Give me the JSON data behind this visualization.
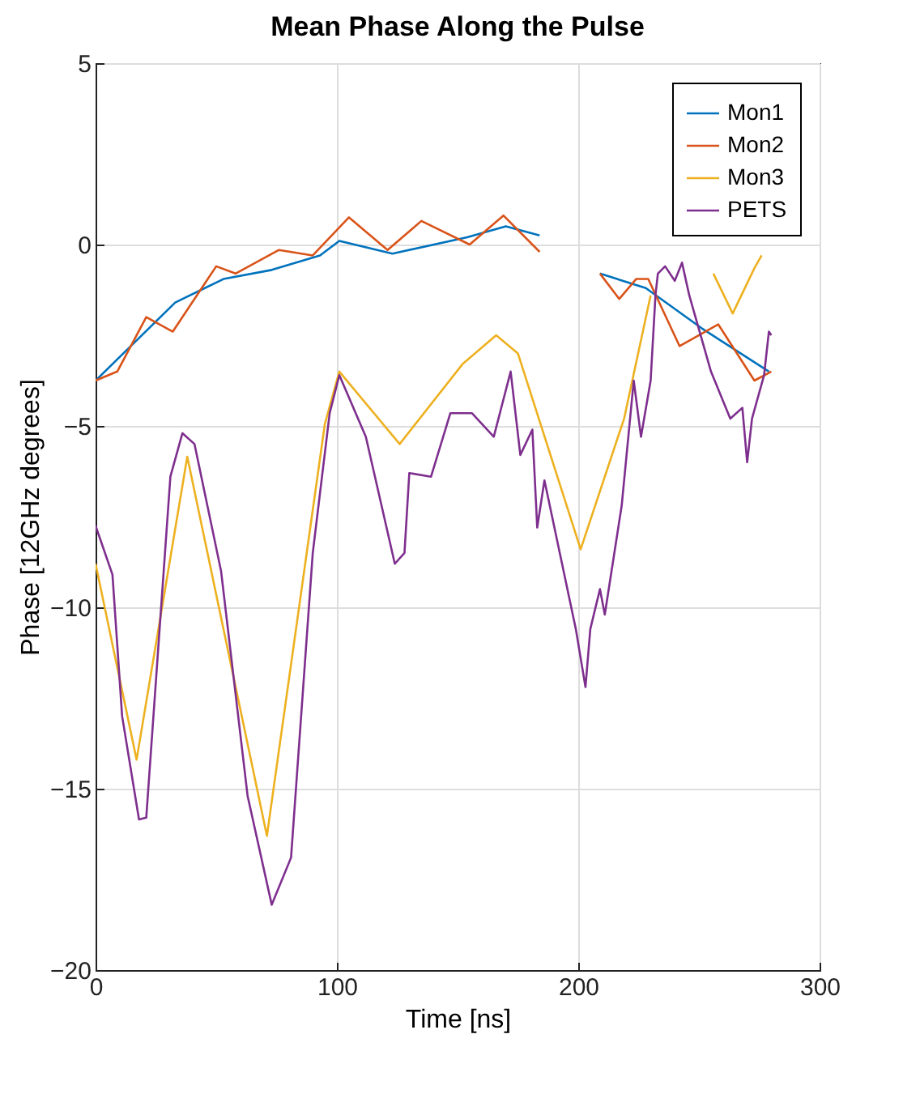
{
  "chart_data": {
    "type": "line",
    "title": "Mean Phase Along the Pulse",
    "xlabel": "Time [ns]",
    "ylabel": "Phase [12GHz degrees]",
    "xlim": [
      0,
      300
    ],
    "xticks": [
      0,
      100,
      200,
      300
    ],
    "ylim": [
      -20,
      5
    ],
    "yticks": [
      -20,
      -15,
      -10,
      -5,
      0,
      5
    ],
    "grid": true,
    "legend": "top right",
    "line_style": "solid",
    "marker": "none",
    "series": [
      {
        "name": "Mon1",
        "color": "#0072bd",
        "x": [
          0,
          33,
          53,
          73,
          93,
          101,
          123,
          154,
          170,
          184,
          197,
          209,
          228,
          251,
          279
        ],
        "values": [
          -3.75,
          -1.6,
          -0.95,
          -0.7,
          -0.3,
          0.1,
          -0.25,
          0.2,
          0.5,
          0.25,
          null,
          -0.8,
          -1.2,
          -2.3,
          -3.5
        ]
      },
      {
        "name": "Mon2",
        "color": "#d95319",
        "x": [
          0,
          9,
          21,
          32,
          50,
          58,
          76,
          90,
          105,
          121,
          135,
          155,
          169,
          184,
          197,
          209,
          217,
          224,
          229,
          242,
          258,
          273,
          280
        ],
        "values": [
          -3.75,
          -3.5,
          -2.0,
          -2.4,
          -0.6,
          -0.8,
          -0.15,
          -0.3,
          0.75,
          -0.15,
          0.65,
          0.0,
          0.8,
          -0.2,
          null,
          -0.8,
          -1.5,
          -0.95,
          -0.95,
          -2.8,
          -2.2,
          -3.75,
          -3.5
        ]
      },
      {
        "name": "Mon3",
        "color": "#edb120",
        "x": [
          0,
          17,
          38,
          71,
          95,
          101,
          126,
          152,
          166,
          175,
          201,
          219,
          230,
          245,
          256,
          264,
          273,
          276
        ],
        "values": [
          -8.8,
          -14.2,
          -5.85,
          -16.3,
          -4.95,
          -3.5,
          -5.5,
          -3.3,
          -2.5,
          -3.0,
          -8.4,
          -4.8,
          -1.4,
          null,
          -0.8,
          -1.9,
          -0.65,
          -0.3
        ]
      },
      {
        "name": "PETS",
        "color": "#7e2f8e",
        "x": [
          0,
          7,
          11,
          18,
          21,
          31,
          36,
          41,
          52,
          63,
          73,
          81,
          90,
          97,
          101,
          112,
          124,
          128,
          130,
          139,
          147,
          150,
          156,
          165,
          172,
          176,
          181,
          183,
          186,
          199,
          203,
          205,
          209,
          211,
          218,
          223,
          226,
          230,
          232,
          233,
          236,
          240,
          243,
          246,
          255,
          263,
          268,
          270,
          272,
          277,
          279,
          280
        ],
        "values": [
          -7.75,
          -9.1,
          -13.0,
          -15.85,
          -15.8,
          -6.4,
          -5.2,
          -5.5,
          -9.0,
          -15.2,
          -18.2,
          -16.9,
          -8.5,
          -4.65,
          -3.6,
          -5.3,
          -8.8,
          -8.5,
          -6.3,
          -6.4,
          -4.65,
          -4.65,
          -4.65,
          -5.3,
          -3.5,
          -5.8,
          -5.1,
          -7.8,
          -6.5,
          -10.6,
          -12.2,
          -10.6,
          -9.5,
          -10.2,
          -7.2,
          -3.75,
          -5.3,
          -3.75,
          -1.4,
          -0.8,
          -0.6,
          -1.0,
          -0.5,
          -1.4,
          -3.5,
          -4.8,
          -4.5,
          -6.0,
          -4.8,
          -3.6,
          -2.4,
          -2.5
        ]
      }
    ]
  }
}
